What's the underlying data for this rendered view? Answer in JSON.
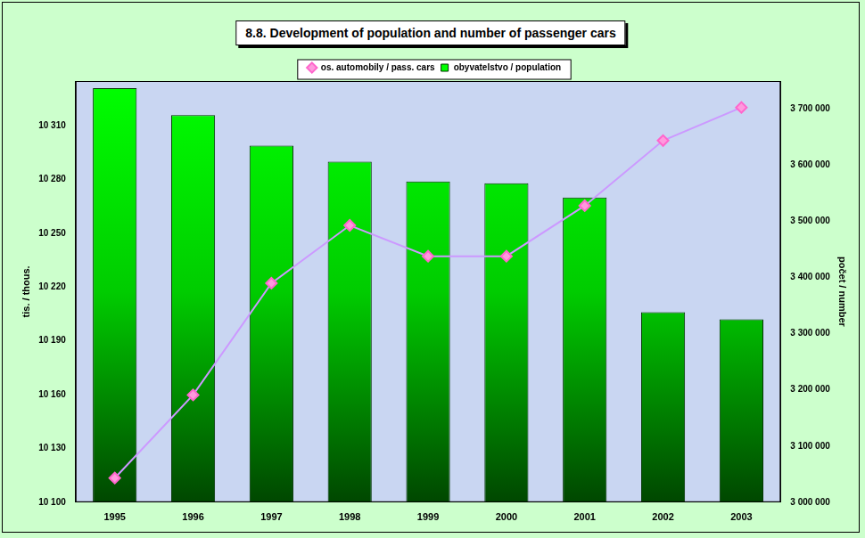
{
  "chart_data": {
    "type": "bar",
    "title": "8.8. Development of population and number of passenger cars",
    "categories": [
      "1995",
      "1996",
      "1997",
      "1998",
      "1999",
      "2000",
      "2001",
      "2002",
      "2003"
    ],
    "y_label": "tis. / thous.",
    "y2_label": "počet / number",
    "series": [
      {
        "name": "obyvatelstvo / population",
        "type": "bar",
        "color": "#00cc00",
        "axis": "y",
        "values": [
          10331,
          10316,
          10299,
          10290,
          10279,
          10278,
          10270,
          10206,
          10202
        ]
      },
      {
        "name": "os. automobily / pass. cars",
        "type": "line",
        "color": "#cc99ff",
        "axis": "y2",
        "marker": "diamond",
        "line_style": "solid",
        "values": [
          3043000,
          3191000,
          3390000,
          3493000,
          3438000,
          3438000,
          3528000,
          3644000,
          3703000
        ]
      }
    ],
    "ylim": [
      10100,
      10335
    ],
    "yticks": [
      {
        "value": 10100,
        "label": "10 100"
      },
      {
        "value": 10130,
        "label": "10 130"
      },
      {
        "value": 10160,
        "label": "10 160"
      },
      {
        "value": 10190,
        "label": "10 190"
      },
      {
        "value": 10220,
        "label": "10 220"
      },
      {
        "value": 10250,
        "label": "10 250"
      },
      {
        "value": 10280,
        "label": "10 280"
      },
      {
        "value": 10310,
        "label": "10 310"
      }
    ],
    "y2lim": [
      3000000,
      3750000
    ],
    "y2ticks": [
      {
        "value": 3000000,
        "label": "3 000 000"
      },
      {
        "value": 3100000,
        "label": "3 100 000"
      },
      {
        "value": 3200000,
        "label": "3 200 000"
      },
      {
        "value": 3300000,
        "label": "3 300 000"
      },
      {
        "value": 3400000,
        "label": "3 400 000"
      },
      {
        "value": 3500000,
        "label": "3 500 000"
      },
      {
        "value": 3600000,
        "label": "3 600 000"
      },
      {
        "value": 3700000,
        "label": "3 700 000"
      }
    ],
    "grid": false,
    "legend": "top"
  }
}
